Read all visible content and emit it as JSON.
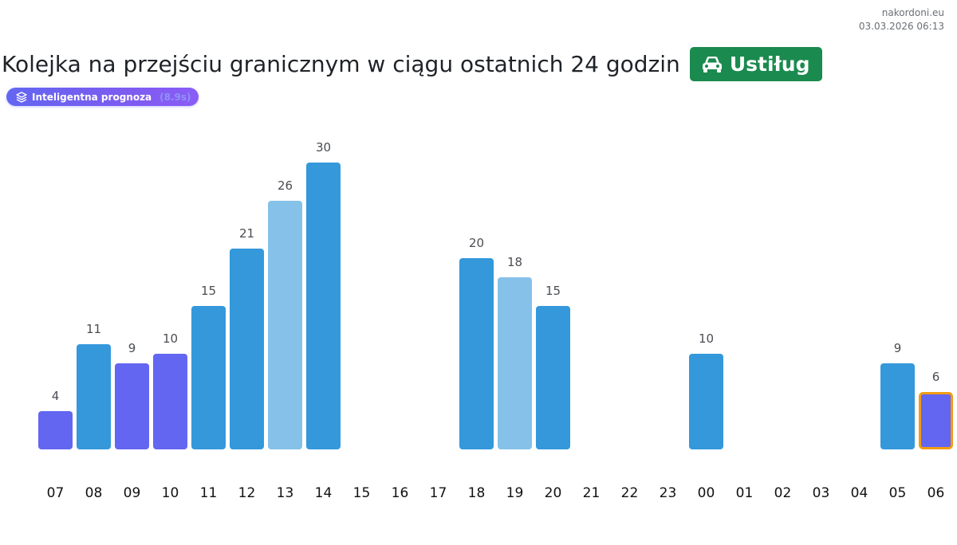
{
  "meta": {
    "site": "nakordoni.eu",
    "timestamp": "03.03.2026 06:13"
  },
  "header": {
    "title": "Kolejka na przejściu granicznym w ciągu ostatnich 24 godzin",
    "place": "Ustiług",
    "place_icon": "car-icon",
    "forecast_label": "Inteligentna prognoza",
    "forecast_extra": "(8.9s)",
    "forecast_icon": "layers-icon"
  },
  "colors": {
    "actual": "#3498db",
    "actual_light": "#85c1e9",
    "forecast": "#6366f1",
    "highlight_border": "#f39c12",
    "badge": "#1b8a4f"
  },
  "chart_data": {
    "type": "bar",
    "title": "Kolejka na przejściu granicznym w ciągu ostatnich 24 godzin",
    "xlabel": "",
    "ylabel": "",
    "grid": false,
    "categories": [
      "07",
      "08",
      "09",
      "10",
      "11",
      "12",
      "13",
      "14",
      "15",
      "16",
      "17",
      "18",
      "19",
      "20",
      "21",
      "22",
      "23",
      "00",
      "01",
      "02",
      "03",
      "04",
      "05",
      "06"
    ],
    "values": [
      4,
      11,
      9,
      10,
      15,
      21,
      26,
      30,
      null,
      null,
      null,
      20,
      18,
      15,
      null,
      null,
      null,
      10,
      null,
      null,
      null,
      null,
      9,
      6
    ],
    "bar_kind": [
      "forecast",
      "actual",
      "forecast",
      "forecast",
      "actual",
      "actual",
      "actual_light",
      "actual",
      null,
      null,
      null,
      "actual",
      "actual_light",
      "actual",
      null,
      null,
      null,
      "actual",
      null,
      null,
      null,
      null,
      "actual",
      "forecast"
    ],
    "highlighted": "06",
    "ylim": [
      0,
      30
    ]
  }
}
